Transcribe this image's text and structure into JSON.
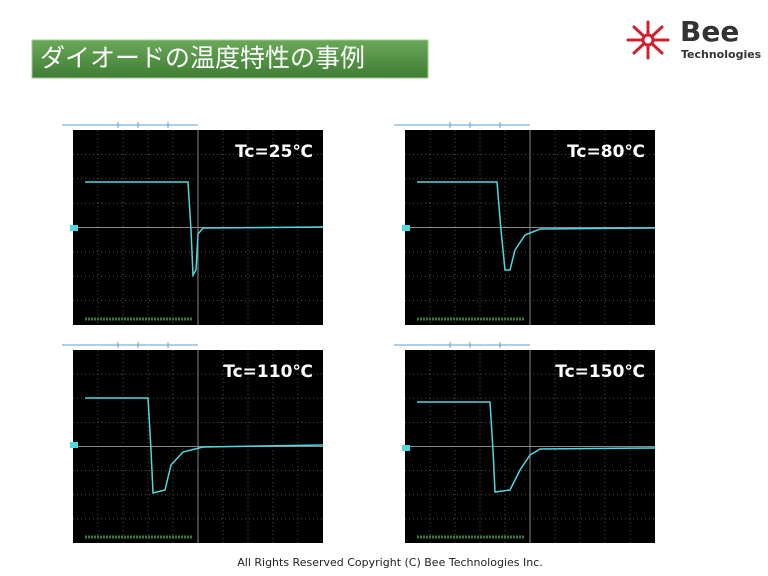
{
  "header": {
    "title": "ダイオードの温度特性の事例",
    "logo_name": "Bee",
    "logo_sub": "Technologies"
  },
  "panels": [
    {
      "label": "Tc=25℃"
    },
    {
      "label": "Tc=80℃"
    },
    {
      "label": "Tc=110℃"
    },
    {
      "label": "Tc=150℃"
    }
  ],
  "footer": "All Rights Reserved Copyright (C) Bee Technologies Inc."
}
